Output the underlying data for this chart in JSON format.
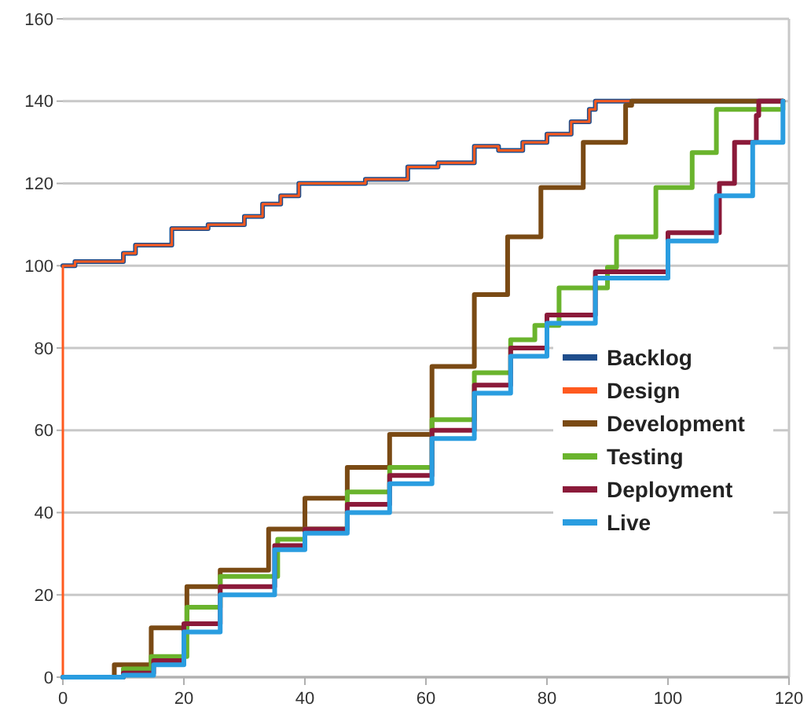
{
  "chart_data": {
    "type": "step",
    "xlim": [
      0,
      120
    ],
    "ylim": [
      0,
      160
    ],
    "xticks": [
      0,
      20,
      40,
      60,
      80,
      100,
      120
    ],
    "yticks": [
      0,
      20,
      40,
      60,
      80,
      100,
      120,
      140,
      160
    ],
    "grid": "y",
    "legend": "right",
    "series": [
      {
        "name": "Backlog",
        "color": "#1f4e8c",
        "x": [
          0,
          2,
          10,
          12,
          18,
          24,
          30,
          33,
          36,
          39,
          50,
          57,
          62,
          68,
          72,
          76,
          80,
          84,
          87,
          88,
          119
        ],
        "values": [
          100,
          101,
          103,
          105,
          109,
          110,
          112,
          115,
          117,
          120,
          121,
          124,
          125,
          129,
          128,
          130,
          132,
          135,
          138,
          140,
          140
        ]
      },
      {
        "name": "Design",
        "color": "#ff5a1f",
        "x": [
          0,
          0,
          2,
          10,
          12,
          18,
          24,
          30,
          33,
          36,
          39,
          50,
          57,
          62,
          68,
          72,
          76,
          80,
          84,
          87,
          88,
          119
        ],
        "values": [
          0,
          100,
          101,
          103,
          105,
          109,
          110,
          112,
          115,
          117,
          120,
          121,
          124,
          125,
          129,
          128,
          130,
          132,
          135,
          138,
          140,
          140
        ]
      },
      {
        "name": "Development",
        "color": "#7a4a14",
        "x": [
          0,
          8.5,
          14.6,
          20.5,
          26,
          34,
          40,
          47,
          54,
          61,
          68,
          73.5,
          79,
          86,
          93,
          94,
          119
        ],
        "values": [
          0,
          3,
          12,
          22,
          26,
          36,
          43.5,
          51,
          59,
          75.5,
          93,
          107,
          119,
          130,
          139,
          140,
          140
        ]
      },
      {
        "name": "Testing",
        "color": "#6ab42d",
        "x": [
          0,
          10,
          14.6,
          20.5,
          26,
          35.5,
          40,
          47,
          54,
          61,
          68,
          74,
          78,
          82,
          90,
          91.5,
          98,
          104,
          108,
          119
        ],
        "values": [
          0,
          2,
          5,
          17,
          24.5,
          33.5,
          36,
          45,
          51,
          62.6,
          74,
          82,
          85.5,
          94.6,
          99.6,
          107,
          119,
          127.5,
          138,
          140
        ]
      },
      {
        "name": "Deployment",
        "color": "#8b1a3a",
        "x": [
          0,
          10,
          15,
          20,
          26,
          35,
          40,
          47,
          54,
          61,
          68,
          74,
          80,
          88,
          100,
          108.5,
          111,
          114.6,
          115,
          119
        ],
        "values": [
          0,
          1,
          4,
          13,
          22,
          32,
          36,
          42,
          49,
          60,
          71,
          80,
          88,
          98.5,
          108,
          120,
          130,
          136.5,
          140,
          140
        ]
      },
      {
        "name": "Live",
        "color": "#2a9de0",
        "x": [
          0,
          10,
          15,
          20,
          26,
          35,
          40,
          47,
          54,
          61,
          68,
          74,
          80,
          88,
          100,
          108,
          114,
          119
        ],
        "values": [
          0,
          0.5,
          3,
          11,
          20,
          31,
          35,
          40,
          47,
          58,
          69,
          78,
          86,
          97,
          106,
          117,
          130,
          140
        ]
      }
    ]
  }
}
